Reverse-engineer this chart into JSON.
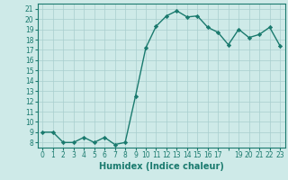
{
  "x": [
    0,
    1,
    2,
    3,
    4,
    5,
    6,
    7,
    8,
    9,
    10,
    11,
    12,
    13,
    14,
    15,
    16,
    17,
    18,
    19,
    20,
    21,
    22,
    23
  ],
  "y": [
    9.0,
    9.0,
    8.0,
    8.0,
    8.5,
    8.0,
    8.5,
    7.8,
    8.0,
    12.5,
    17.2,
    19.3,
    20.3,
    20.8,
    20.2,
    20.3,
    19.2,
    18.7,
    17.5,
    19.0,
    18.2,
    18.5,
    19.2,
    17.4
  ],
  "line_color": "#1a7a6e",
  "marker": "D",
  "marker_size": 2.2,
  "background_color": "#ceeae8",
  "grid_color": "#a8cece",
  "xlabel": "Humidex (Indice chaleur)",
  "xlabel_fontsize": 7,
  "xlim": [
    -0.5,
    23.5
  ],
  "ylim": [
    7.5,
    21.5
  ],
  "yticks": [
    8,
    9,
    10,
    11,
    12,
    13,
    14,
    15,
    16,
    17,
    18,
    19,
    20,
    21
  ],
  "xtick_labels": [
    "0",
    "1",
    "2",
    "3",
    "4",
    "5",
    "6",
    "7",
    "8",
    "9",
    "10",
    "11",
    "12",
    "13",
    "14",
    "15",
    "16",
    "17",
    "",
    "19",
    "20",
    "21",
    "22",
    "23"
  ],
  "tick_fontsize": 5.5,
  "line_width": 1.0
}
